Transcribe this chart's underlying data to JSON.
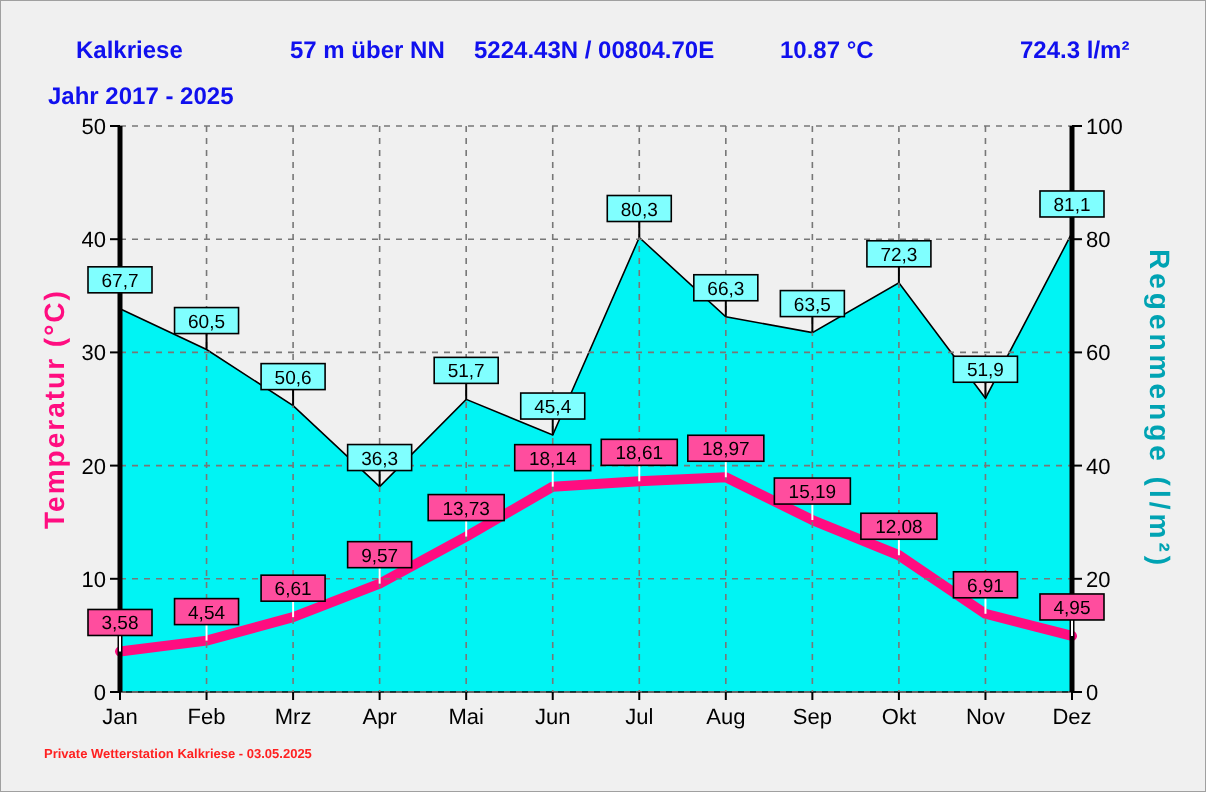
{
  "chart_data": {
    "type": "line",
    "title": "Kalkriese",
    "subtitle": "Jahr  2017 - 2025",
    "annotations": [
      "57 m über NN",
      "5224.43N / 00804.70E",
      "10.87 °C",
      "724.3 l/m²",
      "Private Wetterstation Kalkriese - 03.05.2025"
    ],
    "ylabel": "Temperatur  (°C)",
    "y2label": "Regenmenge  (l/m²)",
    "categories": [
      "Jan",
      "Feb",
      "Mrz",
      "Apr",
      "Mai",
      "Jun",
      "Jul",
      "Aug",
      "Sep",
      "Okt",
      "Nov",
      "Dez"
    ],
    "series": [
      {
        "type": "area",
        "axis": "y2",
        "color": "#00f4f4",
        "values": [
          67.7,
          60.5,
          50.6,
          36.3,
          51.7,
          45.4,
          80.3,
          66.3,
          63.5,
          72.3,
          51.9,
          81.1
        ],
        "value_labels": [
          "67,7",
          "60,5",
          "50,6",
          "36,3",
          "51,7",
          "45,4",
          "80,3",
          "66,3",
          "63,5",
          "72,3",
          "51,9",
          "81,1"
        ]
      },
      {
        "color": "#ff0d80",
        "values": [
          3.58,
          4.54,
          6.61,
          9.57,
          13.73,
          18.14,
          18.61,
          18.97,
          15.19,
          12.08,
          6.91,
          4.95
        ],
        "value_labels": [
          "3,58",
          "4,54",
          "6,61",
          "9,57",
          "13,73",
          "18,14",
          "18,61",
          "18,97",
          "15,19",
          "12,08",
          "6,91",
          "4,95"
        ]
      }
    ],
    "ylim": [
      0,
      50
    ],
    "yticks": [
      0,
      10,
      20,
      30,
      40,
      50
    ],
    "y2lim": [
      0,
      100
    ],
    "y2ticks": [
      0,
      20,
      40,
      60,
      80,
      100
    ],
    "grid": true,
    "line_style": "solid",
    "marker": "none"
  }
}
